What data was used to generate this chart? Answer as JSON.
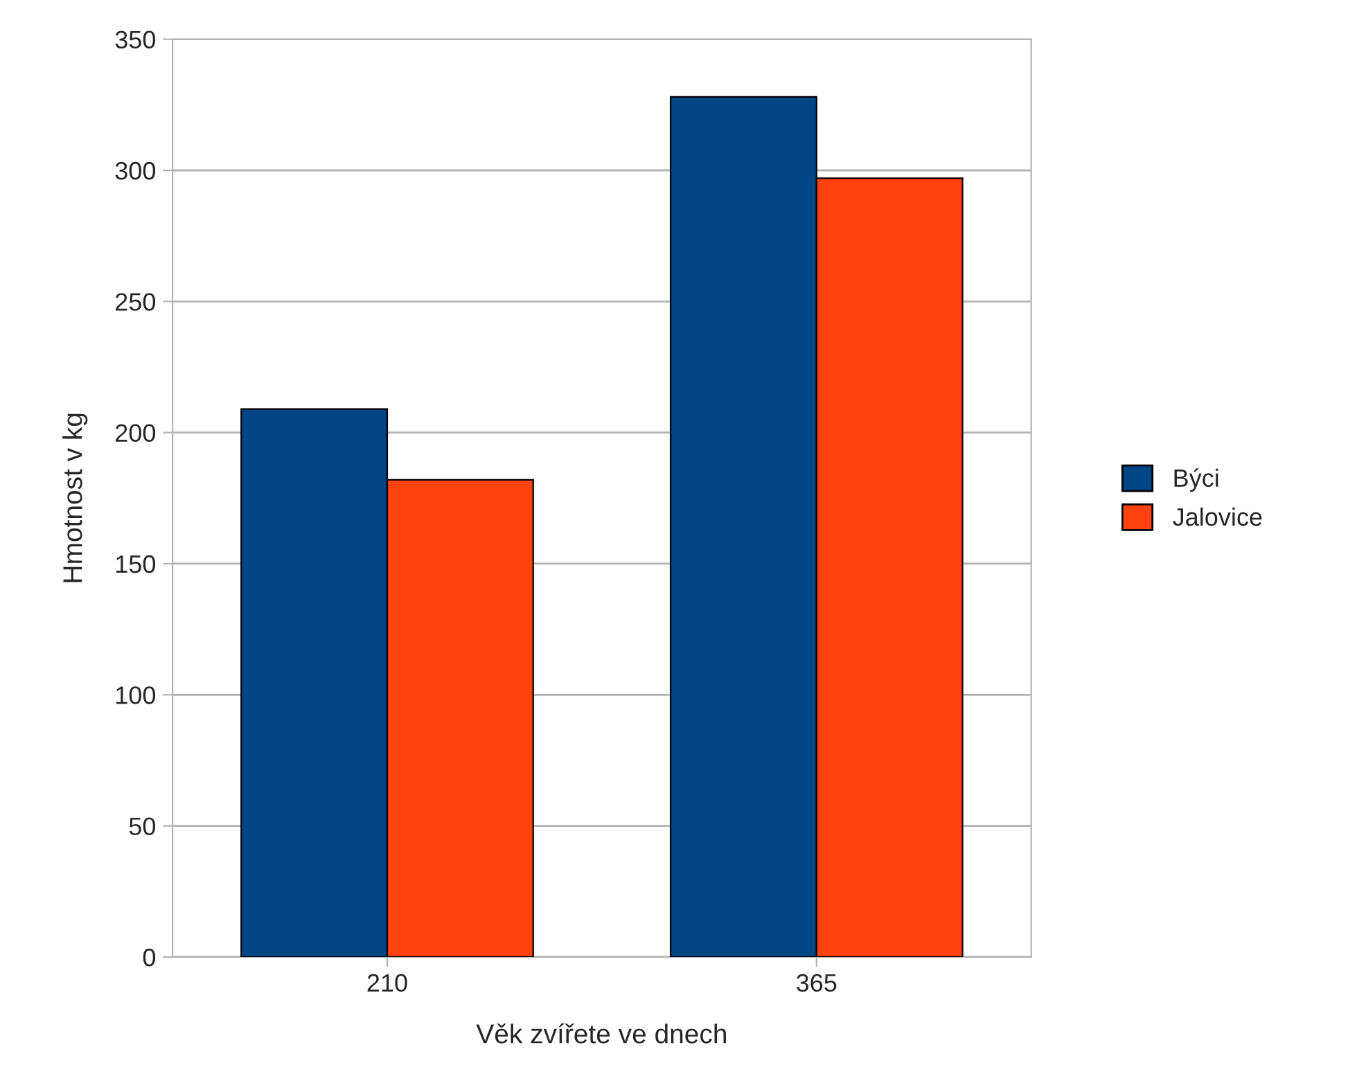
{
  "chart_data": {
    "type": "bar",
    "xlabel": "Věk zvířete ve dnech",
    "ylabel": "Hmotnost v kg",
    "categories": [
      "210",
      "365"
    ],
    "series": [
      {
        "name": "Býci",
        "color": "#004586",
        "values": [
          209,
          328
        ]
      },
      {
        "name": "Jalovice",
        "color": "#ff420e",
        "values": [
          182,
          297
        ]
      }
    ],
    "ylim": [
      0,
      350
    ],
    "yticks": [
      0,
      50,
      100,
      150,
      200,
      250,
      300,
      350
    ],
    "grid": "y",
    "legend": "right"
  }
}
